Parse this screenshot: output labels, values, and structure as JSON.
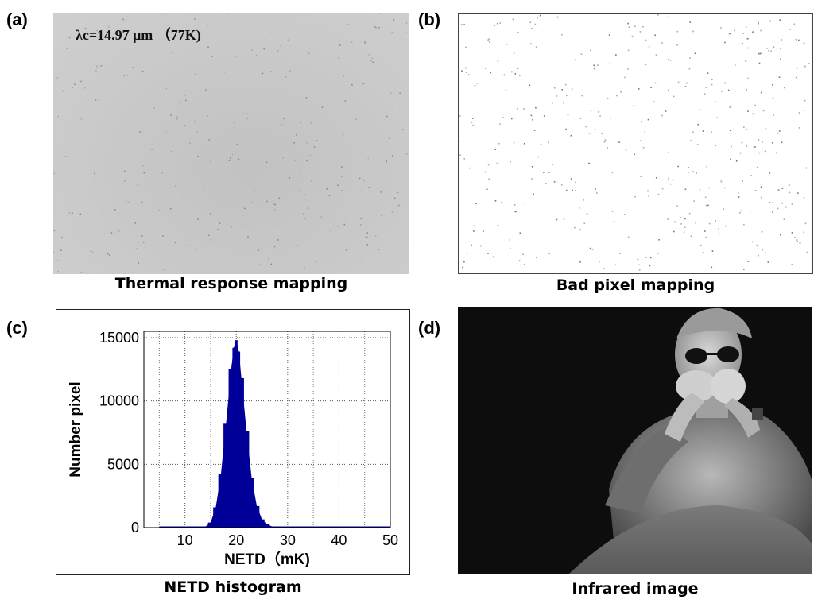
{
  "panels": {
    "a": {
      "letter": "(a)",
      "annotation": "λc=14.97 μm （77K)",
      "caption": "Thermal response mapping"
    },
    "b": {
      "letter": "(b)",
      "caption": "Bad pixel mapping"
    },
    "c": {
      "letter": "(c)",
      "caption": "NETD histogram"
    },
    "d": {
      "letter": "(d)",
      "caption": "Infrared image"
    }
  },
  "chart_data": {
    "type": "bar",
    "title": "",
    "xlabel": "NETD（mK)",
    "ylabel": "Number pixel",
    "xlim": [
      2,
      50
    ],
    "ylim": [
      0,
      15500
    ],
    "xticks": [
      "10",
      "20",
      "30",
      "40",
      "50"
    ],
    "yticks": [
      "0",
      "5000",
      "10000",
      "15000"
    ],
    "grid": true,
    "bar_color": "#000099",
    "bins_mK": [
      14,
      15,
      16,
      17,
      18,
      19,
      19.5,
      20,
      20.5,
      21,
      22,
      23,
      24,
      25,
      26,
      27,
      28
    ],
    "counts": [
      80,
      400,
      1600,
      4200,
      8200,
      12500,
      14200,
      14800,
      13900,
      11800,
      7600,
      3900,
      1700,
      650,
      250,
      90,
      30
    ]
  }
}
